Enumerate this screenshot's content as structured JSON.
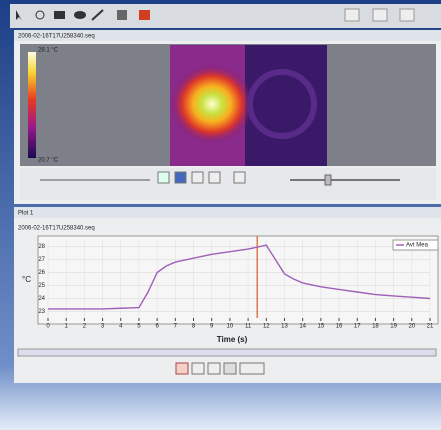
{
  "image_window": {
    "title": "2006-02-16T17U258340.seq",
    "scale_max": "28.1 °C",
    "scale_min": "20.7 °C"
  },
  "plot_window": {
    "title": "Plot 1",
    "file": "2006-02-16T17U258340.seq"
  },
  "chart_data": {
    "type": "line",
    "x_label": "Time (s)",
    "y_label": "°C",
    "x": [
      0,
      1,
      2,
      3,
      4,
      5,
      5.5,
      6,
      6.5,
      7,
      8,
      9,
      10,
      11,
      12,
      12.5,
      13,
      13.5,
      14,
      15,
      16,
      17,
      18,
      19,
      20,
      21
    ],
    "series": [
      {
        "name": "Avt Mea",
        "color": "#a060b8",
        "values": [
          23.2,
          23.2,
          23.2,
          23.2,
          23.25,
          23.3,
          24.5,
          26.0,
          26.5,
          26.8,
          27.1,
          27.4,
          27.6,
          27.8,
          28.1,
          27.0,
          25.9,
          25.5,
          25.2,
          24.9,
          24.7,
          24.5,
          24.3,
          24.2,
          24.1,
          24.0
        ]
      }
    ],
    "xlim": [
      0,
      21
    ],
    "xticks": [
      0,
      1,
      2,
      3,
      4,
      5,
      6,
      7,
      8,
      9,
      10,
      11,
      12,
      13,
      14,
      15,
      16,
      17,
      18,
      19,
      20,
      21
    ],
    "ylim": [
      22.5,
      28.5
    ],
    "yticks": [
      23,
      24,
      25,
      26,
      27,
      28
    ],
    "grid": true,
    "cursor_x": 11.5,
    "cursor_color": "#e05a28"
  }
}
